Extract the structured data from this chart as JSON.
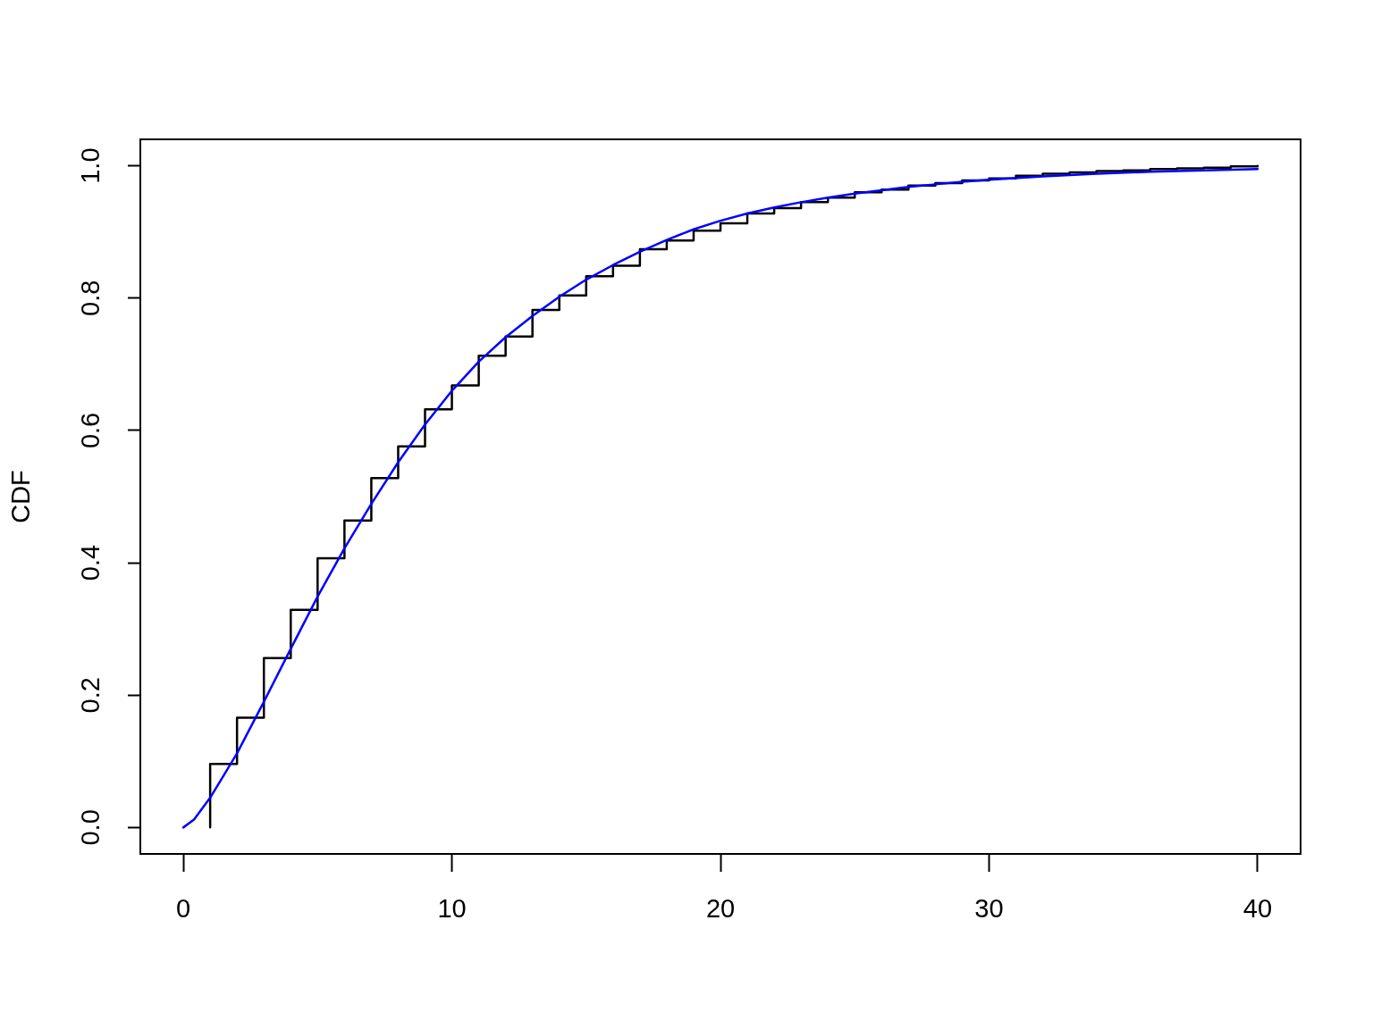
{
  "chart_data": {
    "type": "step",
    "ylabel": "CDF",
    "xlim": [
      -1.6,
      41.6
    ],
    "ylim": [
      -0.04,
      1.04
    ],
    "xticks": [
      0,
      10,
      20,
      30,
      40
    ],
    "yticks": [
      {
        "value": 0,
        "label": "0.0"
      },
      0.2,
      0.4,
      0.6,
      0.8,
      {
        "value": 1,
        "label": "1.0"
      }
    ],
    "series": [
      {
        "type": "step",
        "color": "#000000",
        "x": [
          1,
          1,
          2,
          3,
          4,
          5,
          6,
          7,
          8,
          9,
          10,
          11,
          12,
          13,
          14,
          15,
          16,
          17,
          18,
          19,
          20,
          21,
          22,
          23,
          24,
          25,
          26,
          27,
          28,
          29,
          30,
          31,
          32,
          33,
          34,
          35,
          36,
          37,
          38,
          39,
          40
        ],
        "values": [
          0,
          0.096,
          0.166,
          0.256,
          0.329,
          0.407,
          0.464,
          0.528,
          0.576,
          0.632,
          0.668,
          0.713,
          0.742,
          0.782,
          0.804,
          0.833,
          0.849,
          0.874,
          0.887,
          0.902,
          0.913,
          0.928,
          0.936,
          0.945,
          0.952,
          0.96,
          0.964,
          0.97,
          0.974,
          0.978,
          0.981,
          0.985,
          0.988,
          0.99,
          0.992,
          0.993,
          0.995,
          0.996,
          0.997,
          0.999,
          1.0
        ]
      },
      {
        "type": "line",
        "color": "#0000ff",
        "x": [
          0,
          0.4,
          1,
          2,
          3,
          4,
          5,
          6,
          7,
          8,
          9,
          10,
          11,
          12,
          13,
          14,
          15,
          16,
          17,
          18,
          19,
          20,
          21,
          22,
          23,
          24,
          25,
          26,
          27,
          28,
          29,
          30,
          32,
          34,
          36,
          38,
          40
        ],
        "values": [
          0,
          0.012,
          0.045,
          0.112,
          0.19,
          0.27,
          0.349,
          0.422,
          0.489,
          0.552,
          0.609,
          0.66,
          0.704,
          0.741,
          0.773,
          0.802,
          0.828,
          0.85,
          0.87,
          0.888,
          0.904,
          0.917,
          0.928,
          0.937,
          0.945,
          0.952,
          0.958,
          0.963,
          0.968,
          0.972,
          0.976,
          0.979,
          0.984,
          0.988,
          0.991,
          0.993,
          0.995
        ]
      }
    ]
  }
}
